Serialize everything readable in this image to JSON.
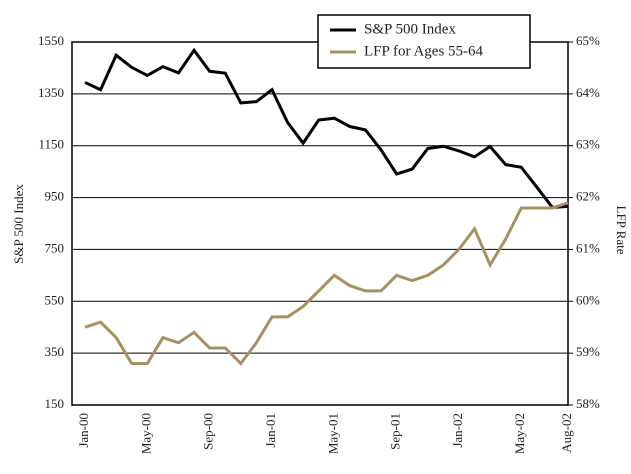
{
  "chart_data": {
    "type": "line",
    "y_label": "S&P 500 Index",
    "y2_label": "LFP Rate",
    "categories": [
      "Jan-00",
      null,
      null,
      null,
      "May-00",
      null,
      null,
      null,
      "Sep-00",
      null,
      null,
      null,
      "Jan-01",
      null,
      null,
      null,
      "May-01",
      null,
      null,
      null,
      "Sep-01",
      null,
      null,
      null,
      "Jan-02",
      null,
      null,
      null,
      "May-02",
      null,
      null,
      "Aug-02"
    ],
    "series": [
      {
        "name": "S&P 500 Index",
        "color": "#000000",
        "axis": "y",
        "values": [
          1394,
          1366,
          1499,
          1452,
          1421,
          1455,
          1431,
          1518,
          1437,
          1430,
          1315,
          1320,
          1366,
          1240,
          1160,
          1249,
          1256,
          1224,
          1211,
          1134,
          1041,
          1060,
          1139,
          1148,
          1130,
          1107,
          1147,
          1077,
          1067,
          990,
          912,
          916
        ]
      },
      {
        "name": "LFP for Ages 55-64",
        "color": "#a89060",
        "axis": "y2",
        "values": [
          59.5,
          59.6,
          59.3,
          58.8,
          58.8,
          59.3,
          59.2,
          59.4,
          59.1,
          59.1,
          58.8,
          59.2,
          59.7,
          59.7,
          59.9,
          60.2,
          60.5,
          60.3,
          60.2,
          60.2,
          60.5,
          60.4,
          60.5,
          60.7,
          61.0,
          61.4,
          60.7,
          61.2,
          61.8,
          61.8,
          61.8,
          61.9
        ]
      }
    ],
    "ylim": [
      150,
      1550
    ],
    "yticks": [
      150,
      350,
      550,
      750,
      950,
      1150,
      1350,
      1550
    ],
    "y2lim": [
      58,
      65
    ],
    "y2ticks": [
      {
        "value": 58,
        "label": "58%"
      },
      {
        "value": 59,
        "label": "59%"
      },
      {
        "value": 60,
        "label": "60%"
      },
      {
        "value": 61,
        "label": "61%"
      },
      {
        "value": 62,
        "label": "62%"
      },
      {
        "value": 63,
        "label": "63%"
      },
      {
        "value": 64,
        "label": "64%"
      },
      {
        "value": 65,
        "label": "65%"
      }
    ],
    "grid": true
  }
}
